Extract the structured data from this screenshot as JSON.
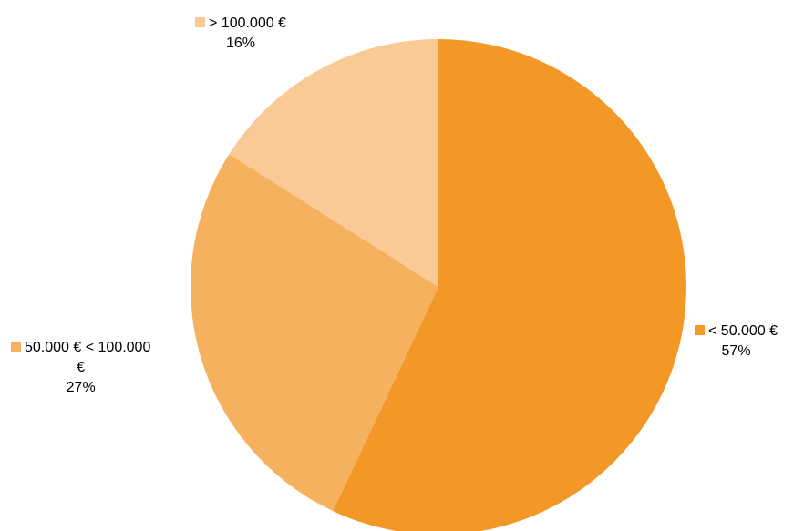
{
  "chart_data": {
    "type": "pie",
    "title": "",
    "legend": "none",
    "labels_position": "outside",
    "start_angle_deg": 0,
    "direction": "clockwise",
    "slices": [
      {
        "label": "< 50.000 €",
        "value": 57,
        "percent_label": "57%",
        "color": "#F39827"
      },
      {
        "label": "50.000 € < 100.000 €",
        "label_lines": [
          "50.000 € < 100.000",
          "€"
        ],
        "value": 27,
        "percent_label": "27%",
        "color": "#F5B15E"
      },
      {
        "label": "> 100.000 €",
        "value": 16,
        "percent_label": "16%",
        "color": "#F9CA96"
      }
    ]
  }
}
